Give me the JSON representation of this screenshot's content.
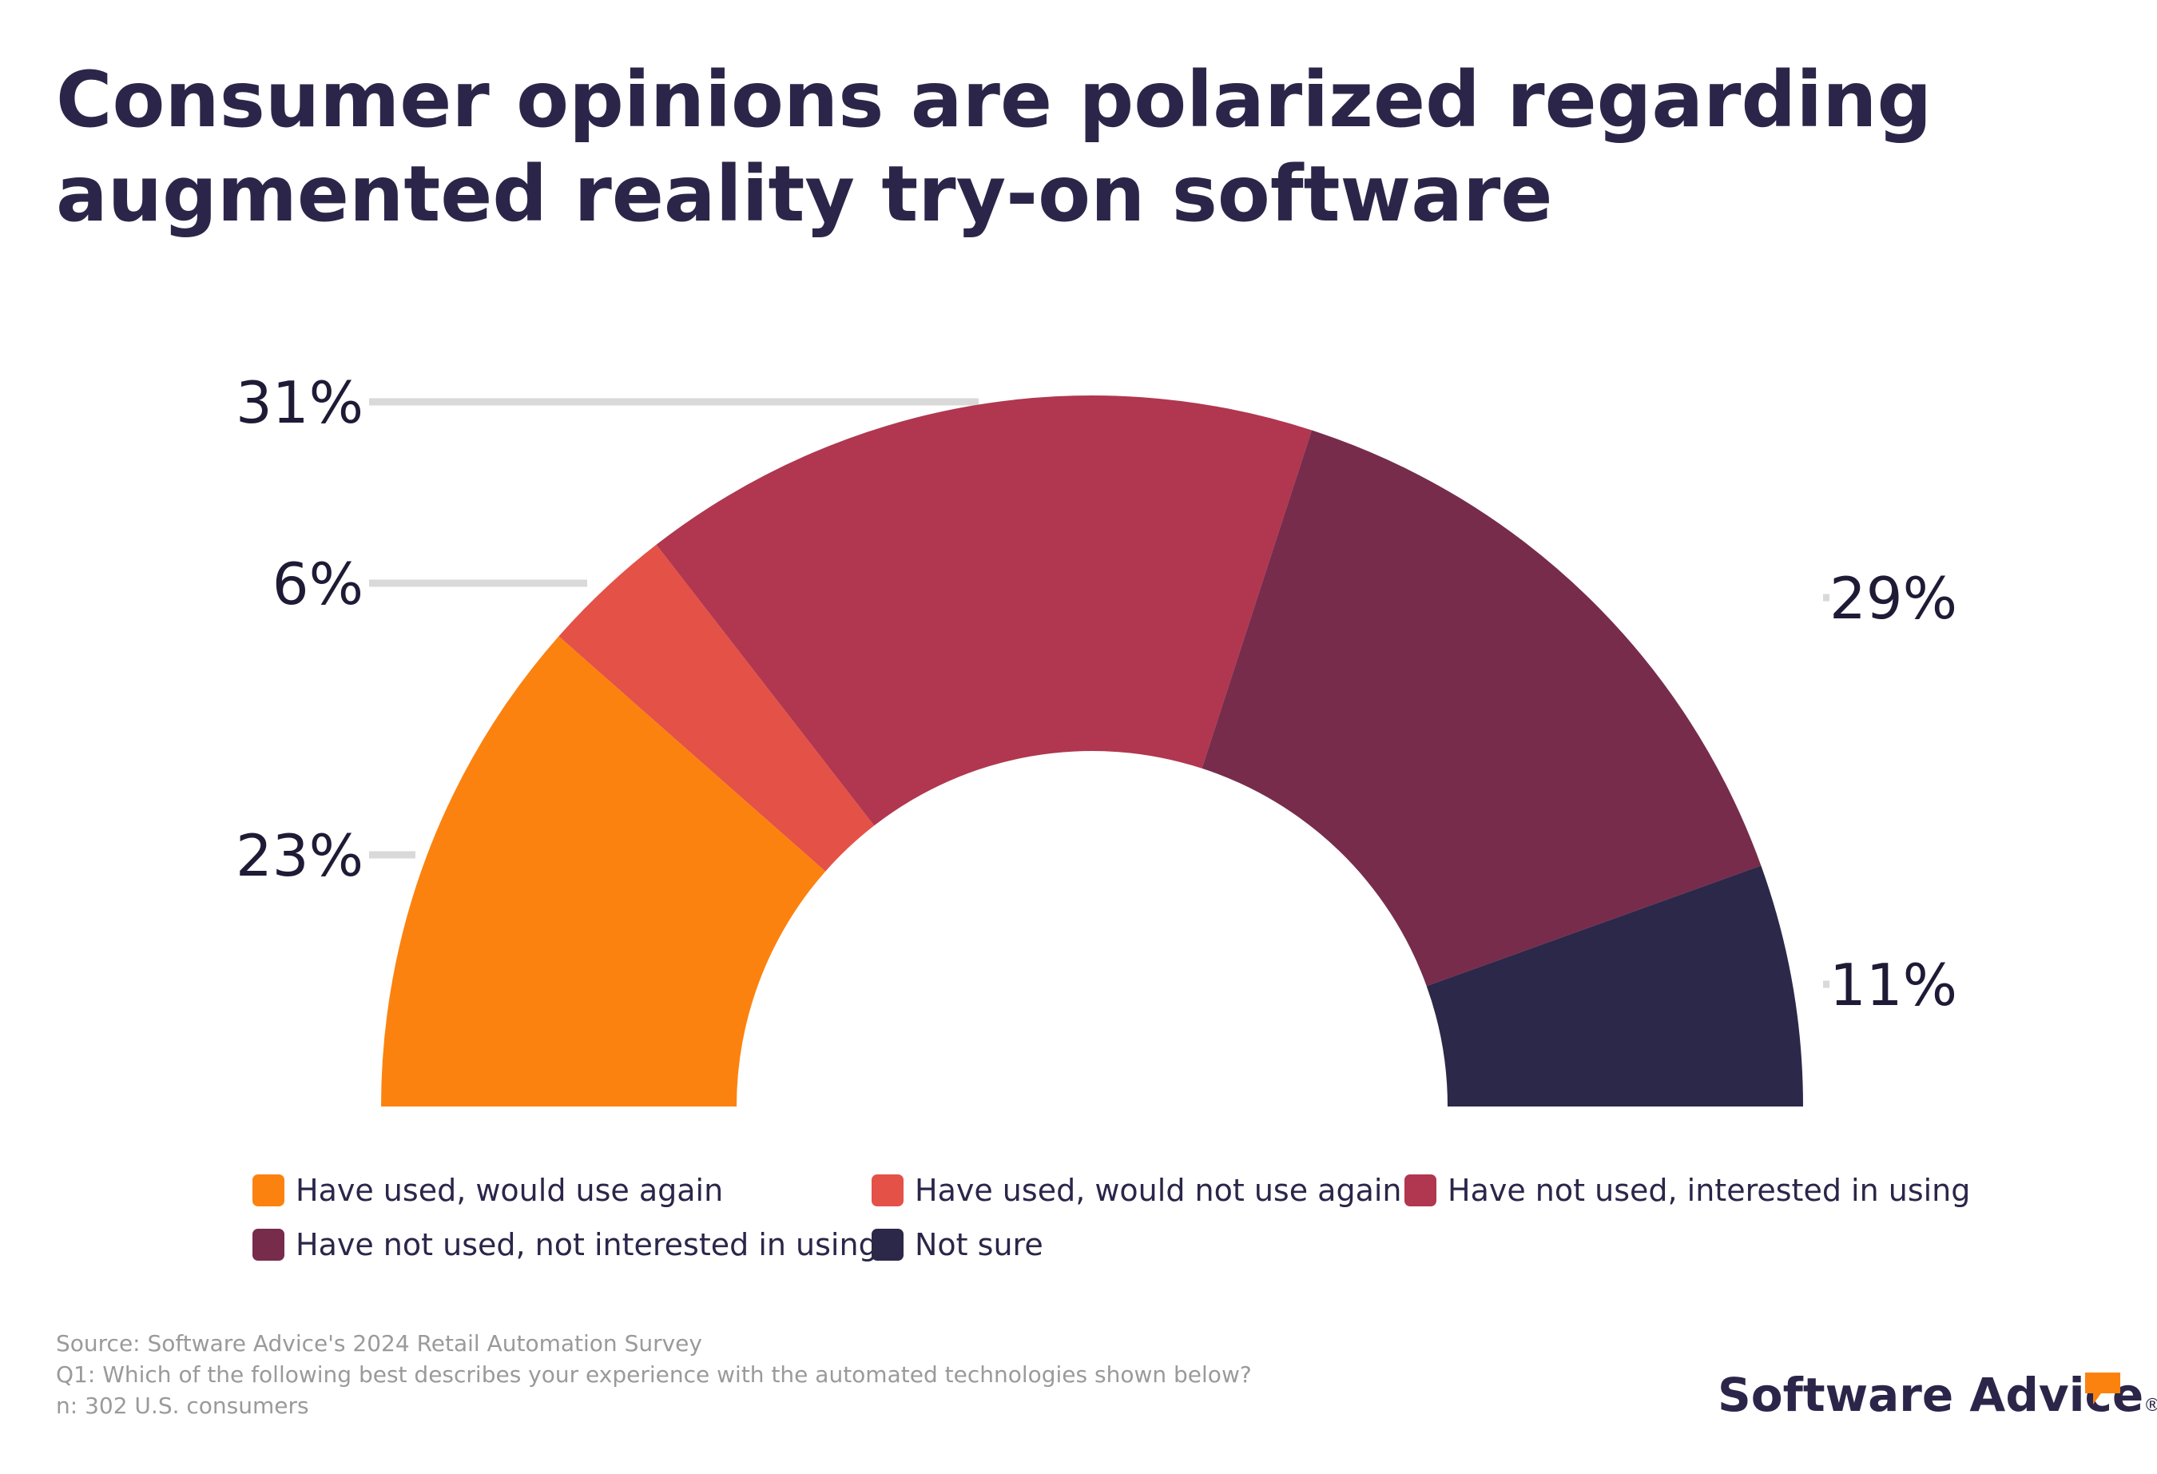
{
  "title": "Consumer opinions are polarized regarding augmented reality try-on software",
  "chart_data": {
    "type": "pie",
    "variant": "semicircle-donut",
    "categories": [
      "Have used, would use again",
      "Have used, would not use again",
      "Have not used, interested in using",
      "Have not used, not interested in using",
      "Not sure"
    ],
    "values": [
      23,
      6,
      31,
      29,
      11
    ],
    "labels": [
      "23%",
      "6%",
      "31%",
      "29%",
      "11%"
    ],
    "colors": [
      "#FC820F",
      "#E45147",
      "#B0374F",
      "#772C4C",
      "#2C2849"
    ],
    "legend_position": "bottom"
  },
  "legend": [
    {
      "label": "Have used, would use again",
      "color": "#FC820F"
    },
    {
      "label": "Have used, would not use again",
      "color": "#E45147"
    },
    {
      "label": "Have not used, interested in using",
      "color": "#B0374F"
    },
    {
      "label": "Have not used, not interested in using",
      "color": "#772C4C"
    },
    {
      "label": "Not sure",
      "color": "#2C2849"
    }
  ],
  "source": {
    "line1": "Source: Software Advice's 2024 Retail Automation Survey",
    "line2": "Q1: Which of the following best describes your experience with the automated technologies shown below?",
    "line3": "n: 302 U.S. consumers"
  },
  "brand": {
    "name": "Software Advice",
    "registered": "®",
    "accent_color": "#FC820F",
    "logo_icon": "speech-bubble-icon"
  }
}
